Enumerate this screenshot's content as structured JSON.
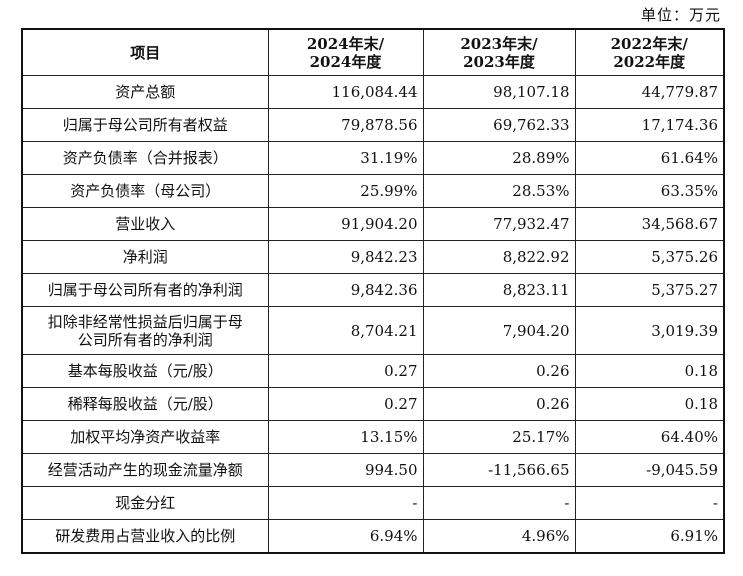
{
  "unit": "单位：万元",
  "table": {
    "header": {
      "item": "项目",
      "col1_line1": "2024年末/",
      "col1_line2": "2024年度",
      "col2_line1": "2023年末/",
      "col2_line2": "2023年度",
      "col3_line1": "2022年末/",
      "col3_line2": "2022年度"
    },
    "rows": [
      {
        "label": "资产总额",
        "v2024": "116,084.44",
        "v2023": "98,107.18",
        "v2022": "44,779.87"
      },
      {
        "label": "归属于母公司所有者权益",
        "v2024": "79,878.56",
        "v2023": "69,762.33",
        "v2022": "17,174.36"
      },
      {
        "label": "资产负债率（合并报表）",
        "v2024": "31.19%",
        "v2023": "28.89%",
        "v2022": "61.64%"
      },
      {
        "label": "资产负债率（母公司）",
        "v2024": "25.99%",
        "v2023": "28.53%",
        "v2022": "63.35%"
      },
      {
        "label": "营业收入",
        "v2024": "91,904.20",
        "v2023": "77,932.47",
        "v2022": "34,568.67"
      },
      {
        "label": "净利润",
        "v2024": "9,842.23",
        "v2023": "8,822.92",
        "v2022": "5,375.26"
      },
      {
        "label": "归属于母公司所有者的净利润",
        "v2024": "9,842.36",
        "v2023": "8,823.11",
        "v2022": "5,375.27"
      },
      {
        "label_line1": "扣除非经常性损益后归属于母",
        "label_line2": "公司所有者的净利润",
        "v2024": "8,704.21",
        "v2023": "7,904.20",
        "v2022": "3,019.39"
      },
      {
        "label": "基本每股收益（元/股）",
        "v2024": "0.27",
        "v2023": "0.26",
        "v2022": "0.18"
      },
      {
        "label": "稀释每股收益（元/股）",
        "v2024": "0.27",
        "v2023": "0.26",
        "v2022": "0.18"
      },
      {
        "label": "加权平均净资产收益率",
        "v2024": "13.15%",
        "v2023": "25.17%",
        "v2022": "64.40%"
      },
      {
        "label": "经营活动产生的现金流量净额",
        "v2024": "994.50",
        "v2023": "-11,566.65",
        "v2022": "-9,045.59"
      },
      {
        "label": "现金分红",
        "v2024": "-",
        "v2023": "-",
        "v2022": "-"
      },
      {
        "label": "研发费用占营业收入的比例",
        "v2024": "6.94%",
        "v2023": "4.96%",
        "v2022": "6.91%"
      }
    ]
  }
}
